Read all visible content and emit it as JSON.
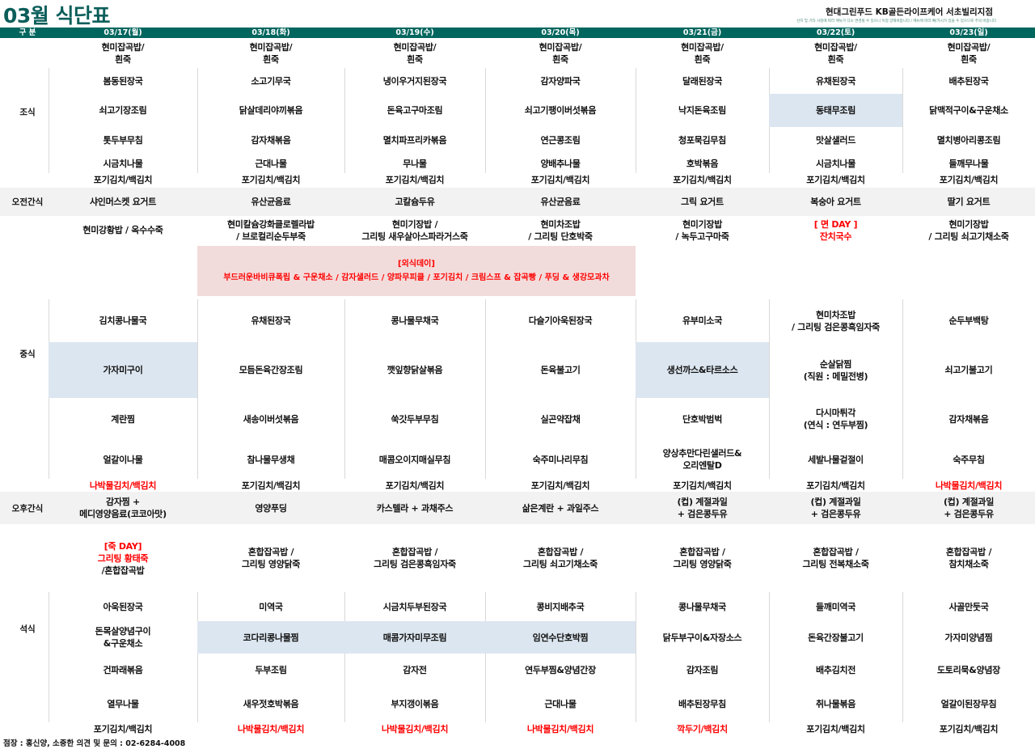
{
  "title": "03월 식단표",
  "org": "현대그린푸드  KB골든라이프케어  서초빌리지점",
  "notice": "산지 및 기타 사정에 따라 메뉴가 다소 변경될 수 있으니 이점 양해바랍니다 / 메뉴에 따라 뼈/가시가 있을 수 있으므로 주의 바랍니다",
  "header_label": "구 분",
  "meal_labels": {
    "breakfast": "조식",
    "am_snack": "오전간식",
    "lunch": "중식",
    "pm_snack": "오후간식",
    "dinner": "석식"
  },
  "colors": {
    "header": "#00665e",
    "title": "#0b5e5a",
    "snack_band": "#f2f2f2",
    "highlight": "#dce6f0",
    "special_bg": "#f2dcdb",
    "red": "#ff0000"
  },
  "lunch_special": {
    "title": "[외식데이]",
    "text": "부드러운바비큐폭립 & 구운채소 / 감자샐러드 / 양파무피클 / 포기김치 / 크림스프 & 잡곡빵 / 푸딩 & 생강모과차"
  },
  "days": [
    {
      "date": "03/17(월)",
      "breakfast": {
        "rice": "현미잡곡밥/\n흰죽",
        "items": [
          "봄동된장국",
          "쇠고기장조림",
          "톳두부무침",
          "시금치나물"
        ],
        "kimchi": "포기김치/백김치"
      },
      "am_snack": "샤인머스켓 요거트",
      "lunch": {
        "rice": "현미강황밥 / 옥수수죽",
        "items": [
          "김치콩나물국",
          {
            "text": "가자미구이",
            "highlight": true
          },
          "계란찜",
          "얼갈이나물"
        ],
        "kimchi": {
          "text": "나박물김치/백김치",
          "red": true
        }
      },
      "pm_snack": "감자찜 +\n메디영양음료(코코아맛)",
      "dinner": {
        "rice": {
          "parts": [
            {
              "text": "[죽 DAY]\n그리팅 황태죽",
              "red": true
            },
            {
              "text": "/혼합잡곡밥"
            }
          ]
        },
        "items": [
          "아욱된장국",
          "돈목살양념구이\n&구운채소",
          "건파래볶음",
          "열무나물"
        ],
        "kimchi": "포기김치/백김치"
      }
    },
    {
      "date": "03/18(화)",
      "breakfast": {
        "rice": "현미잡곡밥/\n흰죽",
        "items": [
          "소고기무국",
          "닭살데리야끼볶음",
          "감자채볶음",
          "근대나물"
        ],
        "kimchi": "포기김치/백김치"
      },
      "am_snack": "유산균음료",
      "lunch": {
        "rice": "현미칼슘강화클로렐라밥\n/ 브로컬리순두부죽",
        "items": [
          "유채된장국",
          "모듬돈육간장조림",
          "새송이버섯볶음",
          "참나물무생채"
        ],
        "kimchi": "포기김치/백김치"
      },
      "pm_snack": "영양푸딩",
      "dinner": {
        "rice": "혼합잡곡밥 /\n그리팅 영양닭죽",
        "items": [
          "미역국",
          {
            "text": "코다리콩나물찜",
            "highlight": true
          },
          "두부조림",
          "새우젓호박볶음"
        ],
        "kimchi": {
          "text": "나박물김치/백김치",
          "red": true
        }
      }
    },
    {
      "date": "03/19(수)",
      "breakfast": {
        "rice": "현미잡곡밥/\n흰죽",
        "items": [
          "냉이우거지된장국",
          "돈육고구마조림",
          "멸치파프리카볶음",
          "무나물"
        ],
        "kimchi": "포기김치/백김치"
      },
      "am_snack": "고칼슘두유",
      "lunch": {
        "rice": "현미기장밥 /\n그리팅 새우살아스파라거스죽",
        "items": [
          "콩나물무채국",
          "깻잎향닭살볶음",
          "쑥갓두부무침",
          "매콤오이지매실무침"
        ],
        "kimchi": "포기김치/백김치"
      },
      "pm_snack": "카스텔라 + 과채주스",
      "dinner": {
        "rice": "혼합잡곡밥 /\n그리팅 검은콩흑임자죽",
        "items": [
          "시금치두부된장국",
          {
            "text": "매콤가자미무조림",
            "highlight": true
          },
          "감자전",
          "부지갱이볶음"
        ],
        "kimchi": {
          "text": "나박물김치/백김치",
          "red": true
        }
      }
    },
    {
      "date": "03/20(목)",
      "breakfast": {
        "rice": "현미잡곡밥/\n흰죽",
        "items": [
          "감자양파국",
          "쇠고기팽이버섯볶음",
          "연근콩조림",
          "양배추나물"
        ],
        "kimchi": "포기김치/백김치"
      },
      "am_snack": "유산균음료",
      "lunch": {
        "rice": "현미차조밥\n/ 그리팅 단호박죽",
        "items": [
          "다슬기아욱된장국",
          "돈육불고기",
          "실곤약잡채",
          "숙주미나리무침"
        ],
        "kimchi": "포기김치/백김치"
      },
      "pm_snack": "삶은계란 + 과일주스",
      "dinner": {
        "rice": "혼합잡곡밥 /\n그리팅 쇠고기채소죽",
        "items": [
          "콩비지배추국",
          {
            "text": "임연수단호박찜",
            "highlight": true
          },
          "연두부찜&양념간장",
          "근대나물"
        ],
        "kimchi": {
          "text": "나박물김치/백김치",
          "red": true
        }
      }
    },
    {
      "date": "03/21(금)",
      "breakfast": {
        "rice": "현미잡곡밥/\n흰죽",
        "items": [
          "달래된장국",
          "낙지돈육조림",
          "청포묵김무침",
          "호박볶음"
        ],
        "kimchi": "포기김치/백김치"
      },
      "am_snack": "그릭 요거트",
      "lunch": {
        "rice": "현미기장밥\n/ 녹두고구마죽",
        "items": [
          "유부미소국",
          {
            "text": "생선까스&타르소스",
            "highlight": true
          },
          "단호박범벅",
          "양상추만다린샐러드&\n오리엔탈D"
        ],
        "kimchi": "포기김치/백김치"
      },
      "pm_snack": "(컵) 계절과일\n+ 검은콩두유",
      "dinner": {
        "rice": "혼합잡곡밥 /\n그리팅 영양닭죽",
        "items": [
          "콩나물무채국",
          "닭두부구이&자장소스",
          "감자조림",
          "배추된장무침"
        ],
        "kimchi": {
          "text": "깍두기/백김치",
          "red": true
        }
      }
    },
    {
      "date": "03/22(토)",
      "breakfast": {
        "rice": "현미잡곡밥/\n흰죽",
        "items": [
          "유채된장국",
          {
            "text": "동태무조림",
            "highlight": true
          },
          "맛살샐러드",
          "시금치나물"
        ],
        "kimchi": "포기김치/백김치"
      },
      "am_snack": "복숭아 요거트",
      "lunch": {
        "rice": {
          "text": "[ 면 DAY ]\n잔치국수",
          "red": true
        },
        "items": [
          "현미차조밥\n/ 그리팅 검은콩흑임자죽",
          "순살닭찜\n(직원 : 메밀전병)",
          "다시마튀각\n(연식 : 연두부찜)",
          "세발나물겉절이"
        ],
        "kimchi": "포기김치/백김치"
      },
      "pm_snack": "(컵) 계절과일\n+ 검은콩두유",
      "dinner": {
        "rice": "혼합잡곡밥 /\n그리팅 전복채소죽",
        "items": [
          "들깨미역국",
          "돈육간장불고기",
          "배추김치전",
          "취나물볶음"
        ],
        "kimchi": "포기김치/백김치"
      }
    },
    {
      "date": "03/23(일)",
      "breakfast": {
        "rice": "현미잡곡밥/\n흰죽",
        "items": [
          "배추된장국",
          "닭맥적구이&구운채소",
          "멸치병아리콩조림",
          "들깨무나물"
        ],
        "kimchi": "포기김치/백김치"
      },
      "am_snack": "딸기 요거트",
      "lunch": {
        "rice": "현미기장밥\n/ 그리팅 쇠고기채소죽",
        "items": [
          "순두부백탕",
          "쇠고기불고기",
          "감자채볶음",
          "숙주무침"
        ],
        "kimchi": {
          "text": "나박물김치/백김치",
          "red": true
        }
      },
      "pm_snack": "(컵) 계절과일\n+ 검은콩두유",
      "dinner": {
        "rice": "혼합잡곡밥 /\n참치채소죽",
        "items": [
          "사골만둣국",
          "가자미양념찜",
          "도토리묵&양념장",
          "얼갈이된장무침"
        ],
        "kimchi": "포기김치/백김치"
      }
    }
  ],
  "footer": "점장 : 홍신양,  소중한 의견 및 문의 : 02-6284-4008"
}
